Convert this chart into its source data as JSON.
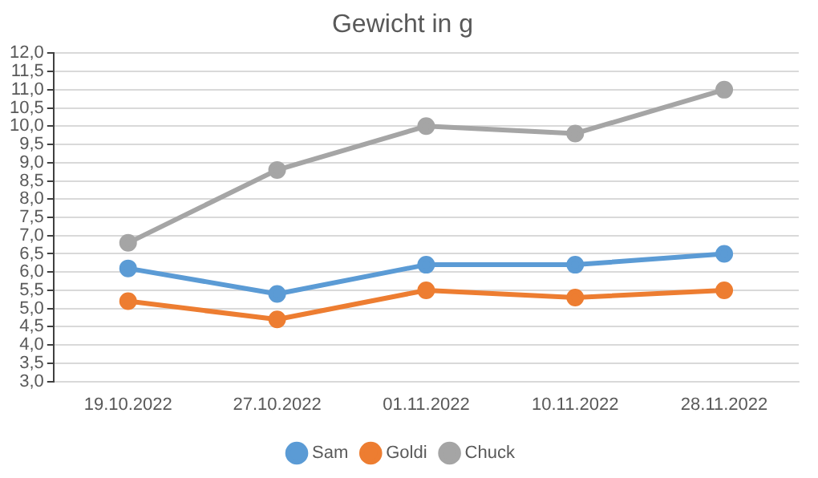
{
  "chart_data": {
    "type": "line",
    "title": "Gewicht in g",
    "categories": [
      "19.10.2022",
      "27.10.2022",
      "01.11.2022",
      "10.11.2022",
      "28.11.2022"
    ],
    "series": [
      {
        "name": "Sam",
        "color": "#5b9bd5",
        "values": [
          6.1,
          5.4,
          6.2,
          6.2,
          6.5
        ]
      },
      {
        "name": "Goldi",
        "color": "#ed7d31",
        "values": [
          5.2,
          4.7,
          5.5,
          5.3,
          5.5
        ]
      },
      {
        "name": "Chuck",
        "color": "#a5a5a5",
        "values": [
          6.8,
          8.8,
          10.0,
          9.8,
          11.0
        ]
      }
    ],
    "ylim": [
      3,
      12
    ],
    "yticks": [
      {
        "value": 3,
        "label": "3,0"
      },
      {
        "value": 3.5,
        "label": "3,5"
      },
      {
        "value": 4,
        "label": "4,0"
      },
      {
        "value": 4.5,
        "label": "4,5"
      },
      {
        "value": 5,
        "label": "5,0"
      },
      {
        "value": 5.5,
        "label": "5,5"
      },
      {
        "value": 6,
        "label": "6,0"
      },
      {
        "value": 6.5,
        "label": "6,5"
      },
      {
        "value": 7,
        "label": "7,0"
      },
      {
        "value": 7.5,
        "label": "7,5"
      },
      {
        "value": 8,
        "label": "8,0"
      },
      {
        "value": 8.5,
        "label": "8,5"
      },
      {
        "value": 9,
        "label": "9,0"
      },
      {
        "value": 9.5,
        "label": "9,5"
      },
      {
        "value": 10,
        "label": "10,0"
      },
      {
        "value": 10.5,
        "label": "10,5"
      },
      {
        "value": 11,
        "label": "11,0"
      },
      {
        "value": 11.5,
        "label": "11,5"
      },
      {
        "value": 12,
        "label": "12,0"
      }
    ],
    "grid": "y",
    "legend": "bottom",
    "marker": "circle",
    "line_style": "solid"
  }
}
